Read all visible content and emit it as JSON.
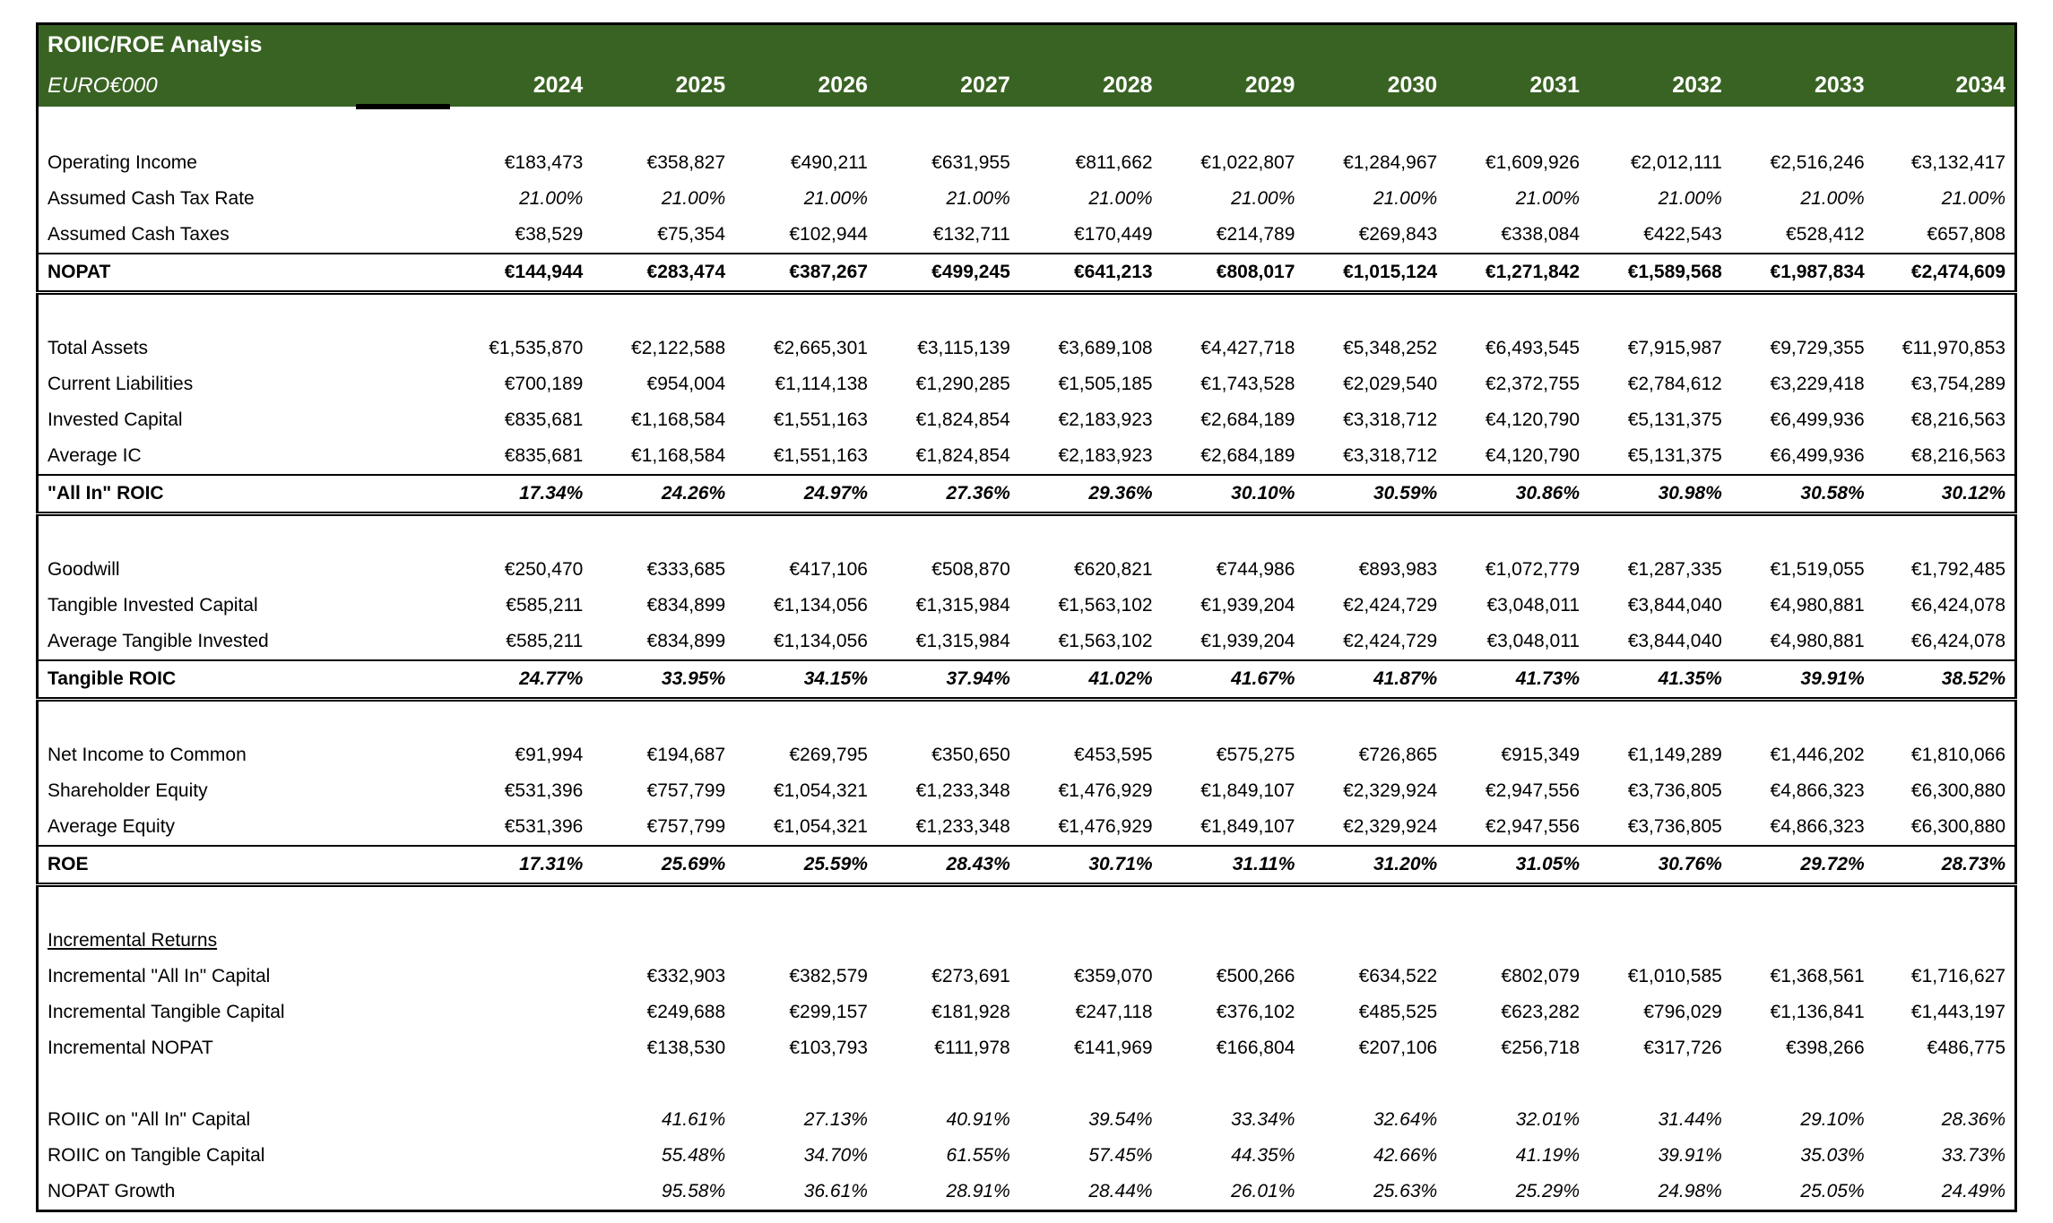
{
  "header": {
    "title": "ROIIC/ROE Analysis",
    "subtitle": "EURO€000"
  },
  "colors": {
    "header_bg": "#396323",
    "header_text": "#ffffff",
    "border": "#000000"
  },
  "years": [
    "2024",
    "2025",
    "2026",
    "2027",
    "2028",
    "2029",
    "2030",
    "2031",
    "2032",
    "2033",
    "2034"
  ],
  "table_rows": [
    {
      "style": "blank",
      "label": "",
      "values": []
    },
    {
      "style": "money",
      "label": "Operating Income",
      "values": [
        "€183,473",
        "€358,827",
        "€490,211",
        "€631,955",
        "€811,662",
        "€1,022,807",
        "€1,284,967",
        "€1,609,926",
        "€2,012,111",
        "€2,516,246",
        "€3,132,417"
      ]
    },
    {
      "style": "pct-italic",
      "label": "Assumed Cash Tax Rate",
      "values": [
        "21.00%",
        "21.00%",
        "21.00%",
        "21.00%",
        "21.00%",
        "21.00%",
        "21.00%",
        "21.00%",
        "21.00%",
        "21.00%",
        "21.00%"
      ]
    },
    {
      "style": "money",
      "label": "Assumed Cash Taxes",
      "values": [
        "€38,529",
        "€75,354",
        "€102,944",
        "€132,711",
        "€170,449",
        "€214,789",
        "€269,843",
        "€338,084",
        "€422,543",
        "€528,412",
        "€657,808"
      ]
    },
    {
      "style": "total-money",
      "label": "NOPAT",
      "values": [
        "€144,944",
        "€283,474",
        "€387,267",
        "€499,245",
        "€641,213",
        "€808,017",
        "€1,015,124",
        "€1,271,842",
        "€1,589,568",
        "€1,987,834",
        "€2,474,609"
      ]
    },
    {
      "style": "blank",
      "label": "",
      "values": []
    },
    {
      "style": "money",
      "label": "Total Assets",
      "values": [
        "€1,535,870",
        "€2,122,588",
        "€2,665,301",
        "€3,115,139",
        "€3,689,108",
        "€4,427,718",
        "€5,348,252",
        "€6,493,545",
        "€7,915,987",
        "€9,729,355",
        "€11,970,853"
      ]
    },
    {
      "style": "money",
      "label": "Current Liabilities",
      "values": [
        "€700,189",
        "€954,004",
        "€1,114,138",
        "€1,290,285",
        "€1,505,185",
        "€1,743,528",
        "€2,029,540",
        "€2,372,755",
        "€2,784,612",
        "€3,229,418",
        "€3,754,289"
      ]
    },
    {
      "style": "money",
      "label": "Invested Capital",
      "values": [
        "€835,681",
        "€1,168,584",
        "€1,551,163",
        "€1,824,854",
        "€2,183,923",
        "€2,684,189",
        "€3,318,712",
        "€4,120,790",
        "€5,131,375",
        "€6,499,936",
        "€8,216,563"
      ]
    },
    {
      "style": "money",
      "label": "Average IC",
      "values": [
        "€835,681",
        "€1,168,584",
        "€1,551,163",
        "€1,824,854",
        "€2,183,923",
        "€2,684,189",
        "€3,318,712",
        "€4,120,790",
        "€5,131,375",
        "€6,499,936",
        "€8,216,563"
      ]
    },
    {
      "style": "total-pct",
      "label": "\"All In\" ROIC",
      "values": [
        "17.34%",
        "24.26%",
        "24.97%",
        "27.36%",
        "29.36%",
        "30.10%",
        "30.59%",
        "30.86%",
        "30.98%",
        "30.58%",
        "30.12%"
      ]
    },
    {
      "style": "blank",
      "label": "",
      "values": []
    },
    {
      "style": "money",
      "label": "Goodwill",
      "values": [
        "€250,470",
        "€333,685",
        "€417,106",
        "€508,870",
        "€620,821",
        "€744,986",
        "€893,983",
        "€1,072,779",
        "€1,287,335",
        "€1,519,055",
        "€1,792,485"
      ]
    },
    {
      "style": "money",
      "label": "Tangible Invested Capital",
      "values": [
        "€585,211",
        "€834,899",
        "€1,134,056",
        "€1,315,984",
        "€1,563,102",
        "€1,939,204",
        "€2,424,729",
        "€3,048,011",
        "€3,844,040",
        "€4,980,881",
        "€6,424,078"
      ]
    },
    {
      "style": "money",
      "label": "Average Tangible Invested",
      "values": [
        "€585,211",
        "€834,899",
        "€1,134,056",
        "€1,315,984",
        "€1,563,102",
        "€1,939,204",
        "€2,424,729",
        "€3,048,011",
        "€3,844,040",
        "€4,980,881",
        "€6,424,078"
      ]
    },
    {
      "style": "total-pct",
      "label": "Tangible ROIC",
      "values": [
        "24.77%",
        "33.95%",
        "34.15%",
        "37.94%",
        "41.02%",
        "41.67%",
        "41.87%",
        "41.73%",
        "41.35%",
        "39.91%",
        "38.52%"
      ]
    },
    {
      "style": "blank",
      "label": "",
      "values": []
    },
    {
      "style": "money",
      "label": "Net Income to Common",
      "values": [
        "€91,994",
        "€194,687",
        "€269,795",
        "€350,650",
        "€453,595",
        "€575,275",
        "€726,865",
        "€915,349",
        "€1,149,289",
        "€1,446,202",
        "€1,810,066"
      ]
    },
    {
      "style": "money",
      "label": "Shareholder Equity",
      "values": [
        "€531,396",
        "€757,799",
        "€1,054,321",
        "€1,233,348",
        "€1,476,929",
        "€1,849,107",
        "€2,329,924",
        "€2,947,556",
        "€3,736,805",
        "€4,866,323",
        "€6,300,880"
      ]
    },
    {
      "style": "money",
      "label": "Average Equity",
      "values": [
        "€531,396",
        "€757,799",
        "€1,054,321",
        "€1,233,348",
        "€1,476,929",
        "€1,849,107",
        "€2,329,924",
        "€2,947,556",
        "€3,736,805",
        "€4,866,323",
        "€6,300,880"
      ]
    },
    {
      "style": "total-pct",
      "label": "ROE",
      "values": [
        "17.31%",
        "25.69%",
        "25.59%",
        "28.43%",
        "30.71%",
        "31.11%",
        "31.20%",
        "31.05%",
        "30.76%",
        "29.72%",
        "28.73%"
      ]
    },
    {
      "style": "blank",
      "label": "",
      "values": []
    },
    {
      "style": "section",
      "label": "Incremental Returns",
      "values": []
    },
    {
      "style": "money",
      "label": "Incremental \"All In\" Capital",
      "values": [
        "",
        "€332,903",
        "€382,579",
        "€273,691",
        "€359,070",
        "€500,266",
        "€634,522",
        "€802,079",
        "€1,010,585",
        "€1,368,561",
        "€1,716,627"
      ]
    },
    {
      "style": "money",
      "label": "Incremental Tangible Capital",
      "values": [
        "",
        "€249,688",
        "€299,157",
        "€181,928",
        "€247,118",
        "€376,102",
        "€485,525",
        "€623,282",
        "€796,029",
        "€1,136,841",
        "€1,443,197"
      ]
    },
    {
      "style": "money",
      "label": "Incremental NOPAT",
      "values": [
        "",
        "€138,530",
        "€103,793",
        "€111,978",
        "€141,969",
        "€166,804",
        "€207,106",
        "€256,718",
        "€317,726",
        "€398,266",
        "€486,775"
      ]
    },
    {
      "style": "blank",
      "label": "",
      "values": []
    },
    {
      "style": "pct-italic",
      "label": "ROIIC on \"All In\" Capital",
      "values": [
        "",
        "41.61%",
        "27.13%",
        "40.91%",
        "39.54%",
        "33.34%",
        "32.64%",
        "32.01%",
        "31.44%",
        "29.10%",
        "28.36%"
      ]
    },
    {
      "style": "pct-italic",
      "label": "ROIIC on Tangible Capital",
      "values": [
        "",
        "55.48%",
        "34.70%",
        "61.55%",
        "57.45%",
        "44.35%",
        "42.66%",
        "41.19%",
        "39.91%",
        "35.03%",
        "33.73%"
      ]
    },
    {
      "style": "pct-italic",
      "label": "NOPAT Growth",
      "values": [
        "",
        "95.58%",
        "36.61%",
        "28.91%",
        "28.44%",
        "26.01%",
        "25.63%",
        "25.29%",
        "24.98%",
        "25.05%",
        "24.49%"
      ]
    }
  ]
}
